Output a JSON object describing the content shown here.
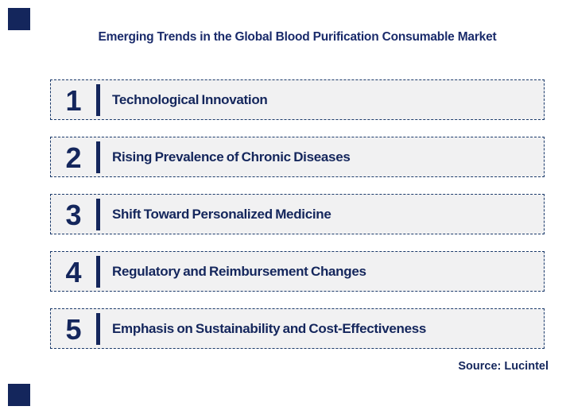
{
  "page": {
    "title": "Emerging Trends in the Global Blood Purification Consumable Market",
    "source": "Source: Lucintel"
  },
  "colors": {
    "navy_text": "#14265C",
    "title_navy": "#1A2B6B",
    "box_fill": "#F1F1F2",
    "box_border": "#1B3A6B",
    "background": "#FFFFFF"
  },
  "trends": [
    {
      "number": "1",
      "label": "Technological Innovation"
    },
    {
      "number": "2",
      "label": "Rising Prevalence of Chronic Diseases"
    },
    {
      "number": "3",
      "label": "Shift Toward Personalized Medicine"
    },
    {
      "number": "4",
      "label": "Regulatory and Reimbursement Changes"
    },
    {
      "number": "5",
      "label": "Emphasis on Sustainability and Cost-Effectiveness"
    }
  ]
}
